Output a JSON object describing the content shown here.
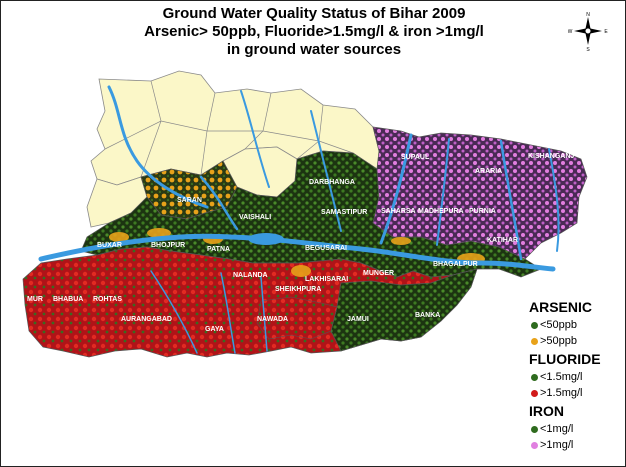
{
  "title": {
    "line1": "Ground Water Quality Status of Bihar 2009",
    "line2": "Arsenic> 50ppb, Fluoride>1.5mg/l  & iron >1mg/l",
    "line3": "in ground water sources"
  },
  "compass": {
    "icon": "compass-rose-icon",
    "n": "N",
    "s": "S",
    "e": "E",
    "w": "W"
  },
  "districts": {
    "kishanganj": "KISHANGANJ",
    "supaul": "SUPAUL",
    "araria": "ARARIA",
    "darbhanga": "DARBHANGA",
    "saran": "SARAN",
    "vaishali": "VAISHALI",
    "samastipur": "SAMASTIPUR",
    "saharsa": "SAHARSA",
    "madhepura": "MADHEPURA",
    "purnia": "PURNIA",
    "buxar": "BUXAR",
    "bhojpur": "BHOJPUR",
    "patna": "PATNA",
    "begusarai": "BEGUSARAI",
    "katihar": "KATIHAR",
    "bhagalpur": "BHAGALPUR",
    "nalanda": "NALANDA",
    "lakhisarai": "LAKHISARAI",
    "munger": "MUNGER",
    "sheikhpura": "SHEIKHPURA",
    "kaimur": "MUR",
    "bhabua": "BHABUA",
    "rohtas": "ROHTAS",
    "aurangabad": "AURANGABAD",
    "gaya": "GAYA",
    "nawada": "NAWADA",
    "jamui": "JAMUI",
    "banka": "BANKA"
  },
  "legend": {
    "arsenic": {
      "heading": "ARSENIC",
      "low": "<50ppb",
      "high": ">50ppb",
      "low_color": "#2e6b1e",
      "high_color": "#e8a21a"
    },
    "fluoride": {
      "heading": "FLUORIDE",
      "low": "<1.5mg/l",
      "high": ">1.5mg/l",
      "low_color": "#2e6b1e",
      "high_color": "#d11a1a"
    },
    "iron": {
      "heading": "IRON",
      "low": "<1mg/l",
      "high": ">1mg/l",
      "low_color": "#2e6b1e",
      "high_color": "#e080e0"
    }
  },
  "colors": {
    "unaffected": "#fbf7c8",
    "green_zone": "#1e3a12",
    "red_zone": "#b8141a",
    "pink_zone": "#7a3a8a",
    "river": "#3a9ae0"
  }
}
